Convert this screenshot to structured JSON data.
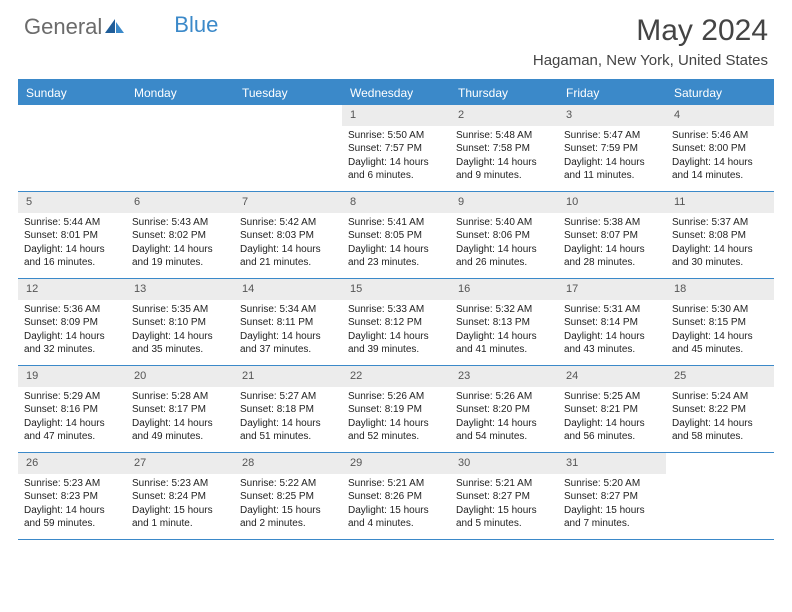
{
  "logo": {
    "part1": "General",
    "part2": "Blue"
  },
  "title": "May 2024",
  "location": "Hagaman, New York, United States",
  "weekdays": [
    "Sunday",
    "Monday",
    "Tuesday",
    "Wednesday",
    "Thursday",
    "Friday",
    "Saturday"
  ],
  "colors": {
    "accent": "#3b89c9",
    "weekday_bg": "#3b89c9",
    "daynum_bg": "#ececec",
    "border": "#3b89c9"
  },
  "weeks": [
    [
      {
        "n": "",
        "sr": "",
        "ss": "",
        "dl": ""
      },
      {
        "n": "",
        "sr": "",
        "ss": "",
        "dl": ""
      },
      {
        "n": "",
        "sr": "",
        "ss": "",
        "dl": ""
      },
      {
        "n": "1",
        "sr": "Sunrise: 5:50 AM",
        "ss": "Sunset: 7:57 PM",
        "dl": "Daylight: 14 hours and 6 minutes."
      },
      {
        "n": "2",
        "sr": "Sunrise: 5:48 AM",
        "ss": "Sunset: 7:58 PM",
        "dl": "Daylight: 14 hours and 9 minutes."
      },
      {
        "n": "3",
        "sr": "Sunrise: 5:47 AM",
        "ss": "Sunset: 7:59 PM",
        "dl": "Daylight: 14 hours and 11 minutes."
      },
      {
        "n": "4",
        "sr": "Sunrise: 5:46 AM",
        "ss": "Sunset: 8:00 PM",
        "dl": "Daylight: 14 hours and 14 minutes."
      }
    ],
    [
      {
        "n": "5",
        "sr": "Sunrise: 5:44 AM",
        "ss": "Sunset: 8:01 PM",
        "dl": "Daylight: 14 hours and 16 minutes."
      },
      {
        "n": "6",
        "sr": "Sunrise: 5:43 AM",
        "ss": "Sunset: 8:02 PM",
        "dl": "Daylight: 14 hours and 19 minutes."
      },
      {
        "n": "7",
        "sr": "Sunrise: 5:42 AM",
        "ss": "Sunset: 8:03 PM",
        "dl": "Daylight: 14 hours and 21 minutes."
      },
      {
        "n": "8",
        "sr": "Sunrise: 5:41 AM",
        "ss": "Sunset: 8:05 PM",
        "dl": "Daylight: 14 hours and 23 minutes."
      },
      {
        "n": "9",
        "sr": "Sunrise: 5:40 AM",
        "ss": "Sunset: 8:06 PM",
        "dl": "Daylight: 14 hours and 26 minutes."
      },
      {
        "n": "10",
        "sr": "Sunrise: 5:38 AM",
        "ss": "Sunset: 8:07 PM",
        "dl": "Daylight: 14 hours and 28 minutes."
      },
      {
        "n": "11",
        "sr": "Sunrise: 5:37 AM",
        "ss": "Sunset: 8:08 PM",
        "dl": "Daylight: 14 hours and 30 minutes."
      }
    ],
    [
      {
        "n": "12",
        "sr": "Sunrise: 5:36 AM",
        "ss": "Sunset: 8:09 PM",
        "dl": "Daylight: 14 hours and 32 minutes."
      },
      {
        "n": "13",
        "sr": "Sunrise: 5:35 AM",
        "ss": "Sunset: 8:10 PM",
        "dl": "Daylight: 14 hours and 35 minutes."
      },
      {
        "n": "14",
        "sr": "Sunrise: 5:34 AM",
        "ss": "Sunset: 8:11 PM",
        "dl": "Daylight: 14 hours and 37 minutes."
      },
      {
        "n": "15",
        "sr": "Sunrise: 5:33 AM",
        "ss": "Sunset: 8:12 PM",
        "dl": "Daylight: 14 hours and 39 minutes."
      },
      {
        "n": "16",
        "sr": "Sunrise: 5:32 AM",
        "ss": "Sunset: 8:13 PM",
        "dl": "Daylight: 14 hours and 41 minutes."
      },
      {
        "n": "17",
        "sr": "Sunrise: 5:31 AM",
        "ss": "Sunset: 8:14 PM",
        "dl": "Daylight: 14 hours and 43 minutes."
      },
      {
        "n": "18",
        "sr": "Sunrise: 5:30 AM",
        "ss": "Sunset: 8:15 PM",
        "dl": "Daylight: 14 hours and 45 minutes."
      }
    ],
    [
      {
        "n": "19",
        "sr": "Sunrise: 5:29 AM",
        "ss": "Sunset: 8:16 PM",
        "dl": "Daylight: 14 hours and 47 minutes."
      },
      {
        "n": "20",
        "sr": "Sunrise: 5:28 AM",
        "ss": "Sunset: 8:17 PM",
        "dl": "Daylight: 14 hours and 49 minutes."
      },
      {
        "n": "21",
        "sr": "Sunrise: 5:27 AM",
        "ss": "Sunset: 8:18 PM",
        "dl": "Daylight: 14 hours and 51 minutes."
      },
      {
        "n": "22",
        "sr": "Sunrise: 5:26 AM",
        "ss": "Sunset: 8:19 PM",
        "dl": "Daylight: 14 hours and 52 minutes."
      },
      {
        "n": "23",
        "sr": "Sunrise: 5:26 AM",
        "ss": "Sunset: 8:20 PM",
        "dl": "Daylight: 14 hours and 54 minutes."
      },
      {
        "n": "24",
        "sr": "Sunrise: 5:25 AM",
        "ss": "Sunset: 8:21 PM",
        "dl": "Daylight: 14 hours and 56 minutes."
      },
      {
        "n": "25",
        "sr": "Sunrise: 5:24 AM",
        "ss": "Sunset: 8:22 PM",
        "dl": "Daylight: 14 hours and 58 minutes."
      }
    ],
    [
      {
        "n": "26",
        "sr": "Sunrise: 5:23 AM",
        "ss": "Sunset: 8:23 PM",
        "dl": "Daylight: 14 hours and 59 minutes."
      },
      {
        "n": "27",
        "sr": "Sunrise: 5:23 AM",
        "ss": "Sunset: 8:24 PM",
        "dl": "Daylight: 15 hours and 1 minute."
      },
      {
        "n": "28",
        "sr": "Sunrise: 5:22 AM",
        "ss": "Sunset: 8:25 PM",
        "dl": "Daylight: 15 hours and 2 minutes."
      },
      {
        "n": "29",
        "sr": "Sunrise: 5:21 AM",
        "ss": "Sunset: 8:26 PM",
        "dl": "Daylight: 15 hours and 4 minutes."
      },
      {
        "n": "30",
        "sr": "Sunrise: 5:21 AM",
        "ss": "Sunset: 8:27 PM",
        "dl": "Daylight: 15 hours and 5 minutes."
      },
      {
        "n": "31",
        "sr": "Sunrise: 5:20 AM",
        "ss": "Sunset: 8:27 PM",
        "dl": "Daylight: 15 hours and 7 minutes."
      },
      {
        "n": "",
        "sr": "",
        "ss": "",
        "dl": ""
      }
    ]
  ]
}
